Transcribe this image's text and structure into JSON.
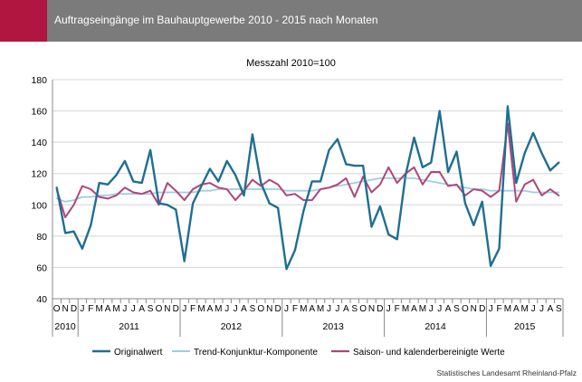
{
  "chart_data": {
    "type": "line",
    "title": "Auftragseingänge im Bauhauptgewerbe 2010 - 2015 nach Monaten",
    "subtitle": "Messzahl 2010=100",
    "ylim": [
      40,
      180
    ],
    "yticks": [
      40,
      60,
      80,
      100,
      120,
      140,
      160,
      180
    ],
    "months": [
      "O",
      "N",
      "D",
      "J",
      "F",
      "M",
      "A",
      "M",
      "J",
      "J",
      "A",
      "S",
      "O",
      "N",
      "D",
      "J",
      "F",
      "M",
      "A",
      "M",
      "J",
      "J",
      "A",
      "S",
      "O",
      "N",
      "D",
      "J",
      "F",
      "M",
      "A",
      "M",
      "J",
      "J",
      "A",
      "S",
      "O",
      "N",
      "D",
      "J",
      "F",
      "M",
      "A",
      "M",
      "J",
      "J",
      "A",
      "S",
      "O",
      "N",
      "D",
      "J",
      "F",
      "M",
      "A",
      "M",
      "J",
      "J",
      "A",
      "S"
    ],
    "years": [
      {
        "label": "2010",
        "start": 0,
        "count": 3
      },
      {
        "label": "2011",
        "start": 3,
        "count": 12
      },
      {
        "label": "2012",
        "start": 15,
        "count": 12
      },
      {
        "label": "2013",
        "start": 27,
        "count": 12
      },
      {
        "label": "2014",
        "start": 39,
        "count": 12
      },
      {
        "label": "2015",
        "start": 51,
        "count": 9
      }
    ],
    "series": [
      {
        "name": "Originalwert",
        "color": "#1f6f91",
        "width": 2.4,
        "values": [
          111,
          82,
          83,
          72,
          87,
          114,
          113,
          119,
          128,
          115,
          114,
          135,
          101,
          100,
          97,
          64,
          101,
          112,
          123,
          115,
          128,
          119,
          106,
          145,
          114,
          101,
          98,
          59,
          71,
          96,
          115,
          115,
          135,
          142,
          126,
          125,
          125,
          86,
          99,
          81,
          78,
          119,
          143,
          124,
          127,
          160,
          121,
          134,
          101,
          87,
          102,
          61,
          72,
          163,
          114,
          133,
          146,
          133,
          122,
          127
        ]
      },
      {
        "name": "Trend-Konjunktur-Komponente",
        "color": "#9dcde4",
        "width": 1.8,
        "values": [
          104,
          102,
          103,
          105,
          105,
          106,
          106,
          107,
          107,
          107,
          107,
          107,
          108,
          108,
          108,
          108,
          108,
          109,
          109,
          110,
          110,
          110,
          110,
          110,
          110,
          110,
          110,
          109,
          109,
          109,
          109,
          110,
          111,
          112,
          113,
          114,
          115,
          116,
          117,
          117,
          117,
          117,
          117,
          116,
          115,
          114,
          113,
          112,
          111,
          110,
          110,
          109,
          109,
          109,
          109,
          109,
          108,
          108,
          108,
          108
        ]
      },
      {
        "name": "Saison- und kalenderbereinigte Werte",
        "color": "#b0457a",
        "width": 2.0,
        "values": [
          110,
          92,
          100,
          112,
          110,
          105,
          104,
          106,
          111,
          108,
          107,
          109,
          100,
          114,
          109,
          103,
          110,
          113,
          114,
          111,
          110,
          103,
          109,
          116,
          112,
          116,
          113,
          106,
          107,
          103,
          103,
          110,
          111,
          113,
          117,
          105,
          118,
          108,
          113,
          124,
          114,
          120,
          124,
          113,
          121,
          121,
          112,
          113,
          106,
          110,
          109,
          105,
          109,
          152,
          102,
          113,
          116,
          106,
          110,
          106
        ]
      }
    ]
  },
  "header": {
    "title": "Auftragseingänge im Bauhauptgewerbe 2010 - 2015 nach Monaten"
  },
  "subtitle": "Messzahl 2010=100",
  "legend": {
    "items": [
      {
        "label": "Originalwert",
        "color": "#1f6f91"
      },
      {
        "label": "Trend-Konjunktur-Komponente",
        "color": "#9dcde4"
      },
      {
        "label": "Saison- und kalenderbereinigte Werte",
        "color": "#b0457a"
      }
    ]
  },
  "source": "Statistisches Landesamt Rheinland-Pfalz"
}
